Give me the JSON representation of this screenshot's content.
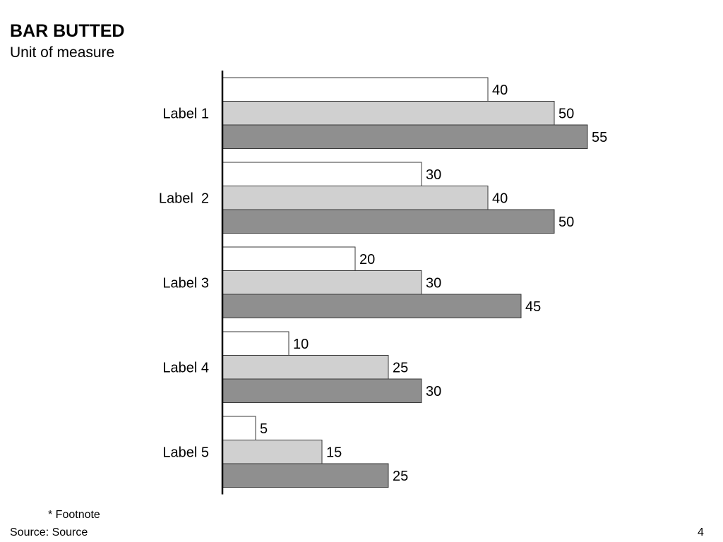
{
  "slide": {
    "title": "BAR BUTTED",
    "subtitle": "Unit of measure",
    "footnote": "* Footnote",
    "source": "Source: Source",
    "page_number": "4"
  },
  "chart_data": {
    "type": "bar",
    "orientation": "horizontal",
    "title": "BAR BUTTED",
    "subtitle": "Unit of measure",
    "categories": [
      "Label 1",
      "Label  2",
      "Label 3",
      "Label 4",
      "Label 5"
    ],
    "series": [
      {
        "values": [
          40,
          30,
          20,
          10,
          5
        ],
        "color": "#ffffff"
      },
      {
        "values": [
          50,
          40,
          30,
          25,
          15
        ],
        "color": "#d0d0d0"
      },
      {
        "values": [
          55,
          50,
          45,
          30,
          25
        ],
        "color": "#8f8f8f"
      }
    ],
    "xlim": [
      0,
      60
    ],
    "grid": false,
    "data_labels": true
  }
}
